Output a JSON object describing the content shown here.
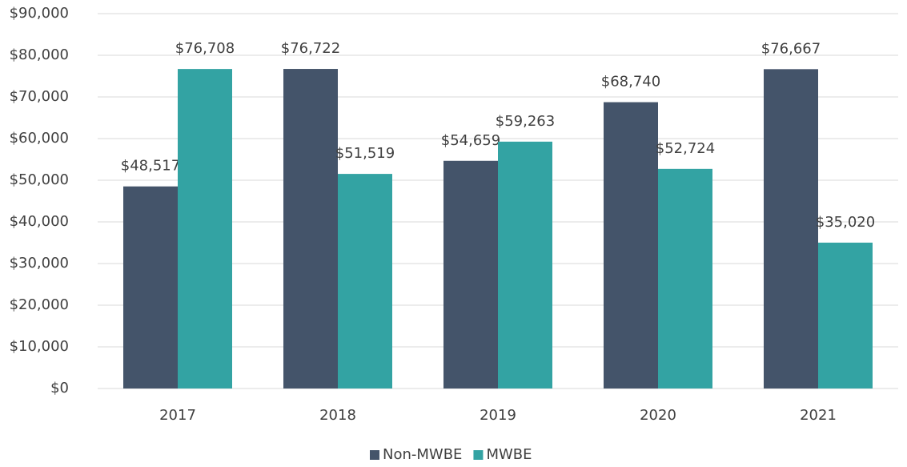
{
  "chart_data": {
    "type": "bar",
    "categories": [
      "2017",
      "2018",
      "2019",
      "2020",
      "2021"
    ],
    "series": [
      {
        "name": "Non-MWBE",
        "color": "#44546a",
        "values": [
          48517,
          76722,
          54659,
          68740,
          76667
        ],
        "value_labels": [
          "$48,517",
          "$76,722",
          "$54,659",
          "$68,740",
          "$76,667"
        ]
      },
      {
        "name": "MWBE",
        "color": "#33a3a3",
        "values": [
          76708,
          51519,
          59263,
          52724,
          35020
        ],
        "value_labels": [
          "$76,708",
          "$51,519",
          "$59,263",
          "$52,724",
          "$35,020"
        ]
      }
    ],
    "ylim": [
      0,
      90000
    ],
    "yticks": [
      {
        "value": 0,
        "label": "$0"
      },
      {
        "value": 10000,
        "label": "$10,000"
      },
      {
        "value": 20000,
        "label": "$20,000"
      },
      {
        "value": 30000,
        "label": "$30,000"
      },
      {
        "value": 40000,
        "label": "$40,000"
      },
      {
        "value": 50000,
        "label": "$50,000"
      },
      {
        "value": 60000,
        "label": "$60,000"
      },
      {
        "value": 70000,
        "label": "$70,000"
      },
      {
        "value": 80000,
        "label": "$80,000"
      },
      {
        "value": 90000,
        "label": "$90,000"
      }
    ],
    "grid": true,
    "legend": "bottom"
  }
}
